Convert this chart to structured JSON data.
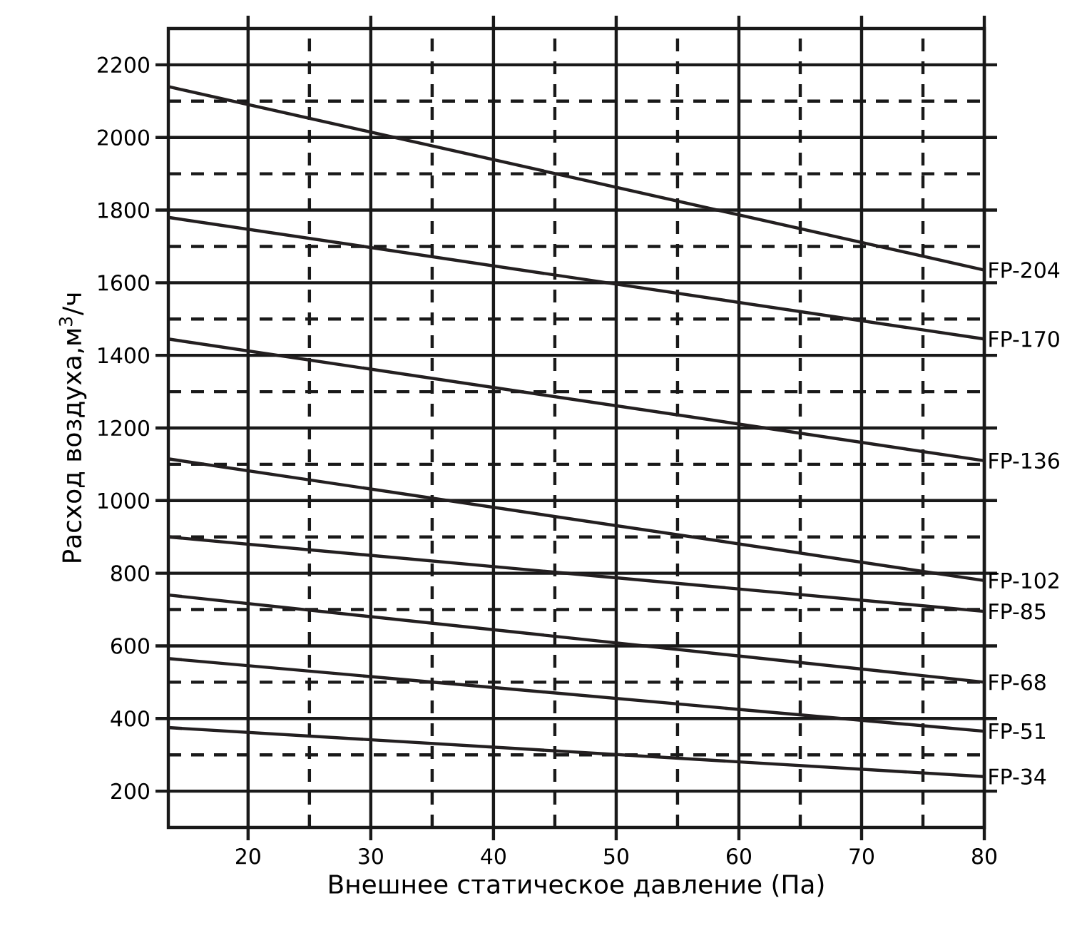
{
  "chart_data": {
    "type": "line",
    "xlabel": "Внешнее статическое давление (Па)",
    "ylabel": "Расход воздуха,м$^{3}$/ч",
    "x": [
      13.5,
      80
    ],
    "xlim": [
      13.5,
      80
    ],
    "ylim": [
      100,
      2300
    ],
    "xticks": [
      20,
      30,
      40,
      50,
      60,
      70,
      80,
      {
        "value": 25,
        "label": null
      },
      {
        "value": 35,
        "label": null
      },
      {
        "value": 45,
        "label": null
      },
      {
        "value": 55,
        "label": null
      },
      {
        "value": 65,
        "label": null
      },
      {
        "value": 75,
        "label": null
      }
    ],
    "yticks": [
      200,
      400,
      600,
      800,
      1000,
      1200,
      1400,
      1600,
      1800,
      2000,
      2200,
      {
        "value": 300,
        "label": null
      },
      {
        "value": 500,
        "label": null
      },
      {
        "value": 700,
        "label": null
      },
      {
        "value": 900,
        "label": null
      },
      {
        "value": 1100,
        "label": null
      },
      {
        "value": 1300,
        "label": null
      },
      {
        "value": 1500,
        "label": null
      },
      {
        "value": 1700,
        "label": null
      },
      {
        "value": 1900,
        "label": null
      },
      {
        "value": 2100,
        "label": null
      }
    ],
    "grid": true,
    "legend": "right",
    "marker": "none",
    "line_style": "solid",
    "series": [
      {
        "name": "FP-204",
        "color": "#231f20",
        "values": [
          2140,
          1635
        ]
      },
      {
        "name": "FP-170",
        "color": "#231f20",
        "values": [
          1780,
          1445
        ]
      },
      {
        "name": "FP-136",
        "color": "#231f20",
        "values": [
          1445,
          1110
        ]
      },
      {
        "name": "FP-102",
        "color": "#231f20",
        "values": [
          1115,
          780
        ]
      },
      {
        "name": "FP-85",
        "color": "#231f20",
        "values": [
          900,
          695
        ]
      },
      {
        "name": "FP-68",
        "color": "#231f20",
        "values": [
          740,
          500
        ]
      },
      {
        "name": "FP-51",
        "color": "#231f20",
        "values": [
          565,
          365
        ]
      },
      {
        "name": "FP-34",
        "color": "#231f20",
        "values": [
          375,
          240
        ]
      }
    ]
  }
}
